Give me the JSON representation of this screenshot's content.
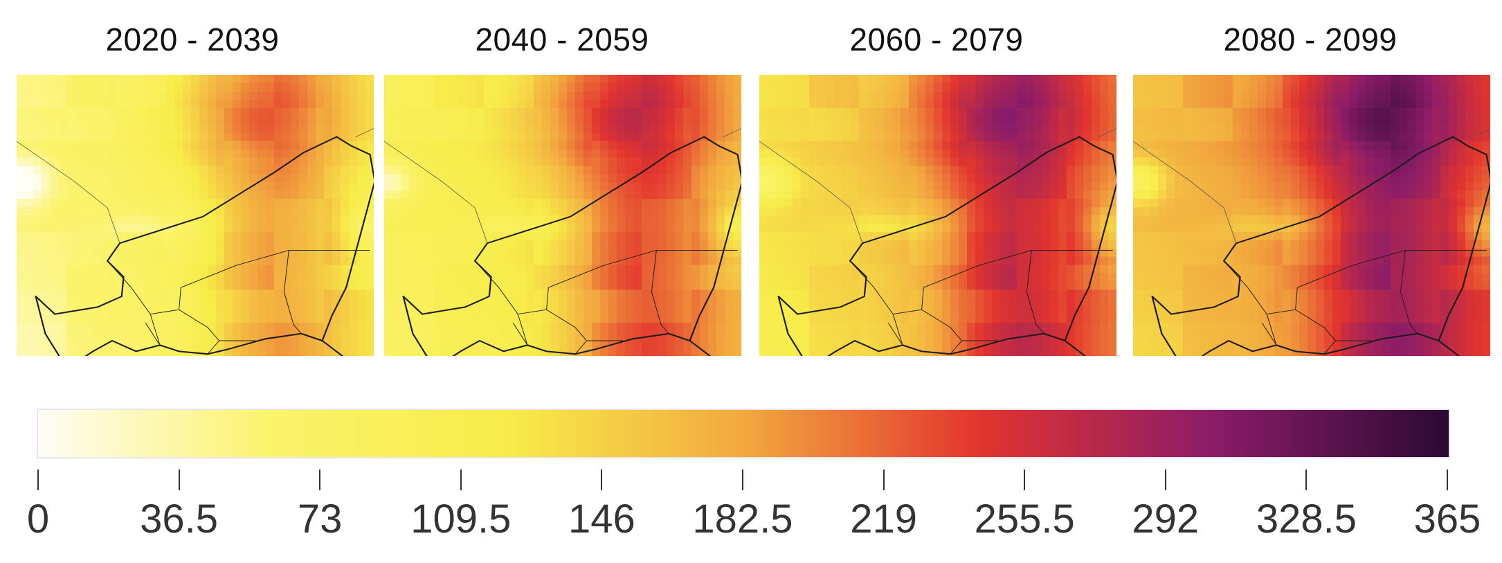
{
  "periods": [
    {
      "label": "2020 - 2039"
    },
    {
      "label": "2040 - 2059"
    },
    {
      "label": "2060 - 2079"
    },
    {
      "label": "2080 - 2099"
    }
  ],
  "colorbar": {
    "min": 0,
    "max": 365,
    "ticks": [
      "0",
      "36.5",
      "73",
      "109.5",
      "146",
      "182.5",
      "219",
      "255.5",
      "292",
      "328.5",
      "365"
    ],
    "colors": [
      "#fffdf6",
      "#fbf36b",
      "#f7ec4a",
      "#f2a93f",
      "#e2352e",
      "#8b1c68",
      "#2c0a34"
    ]
  }
}
